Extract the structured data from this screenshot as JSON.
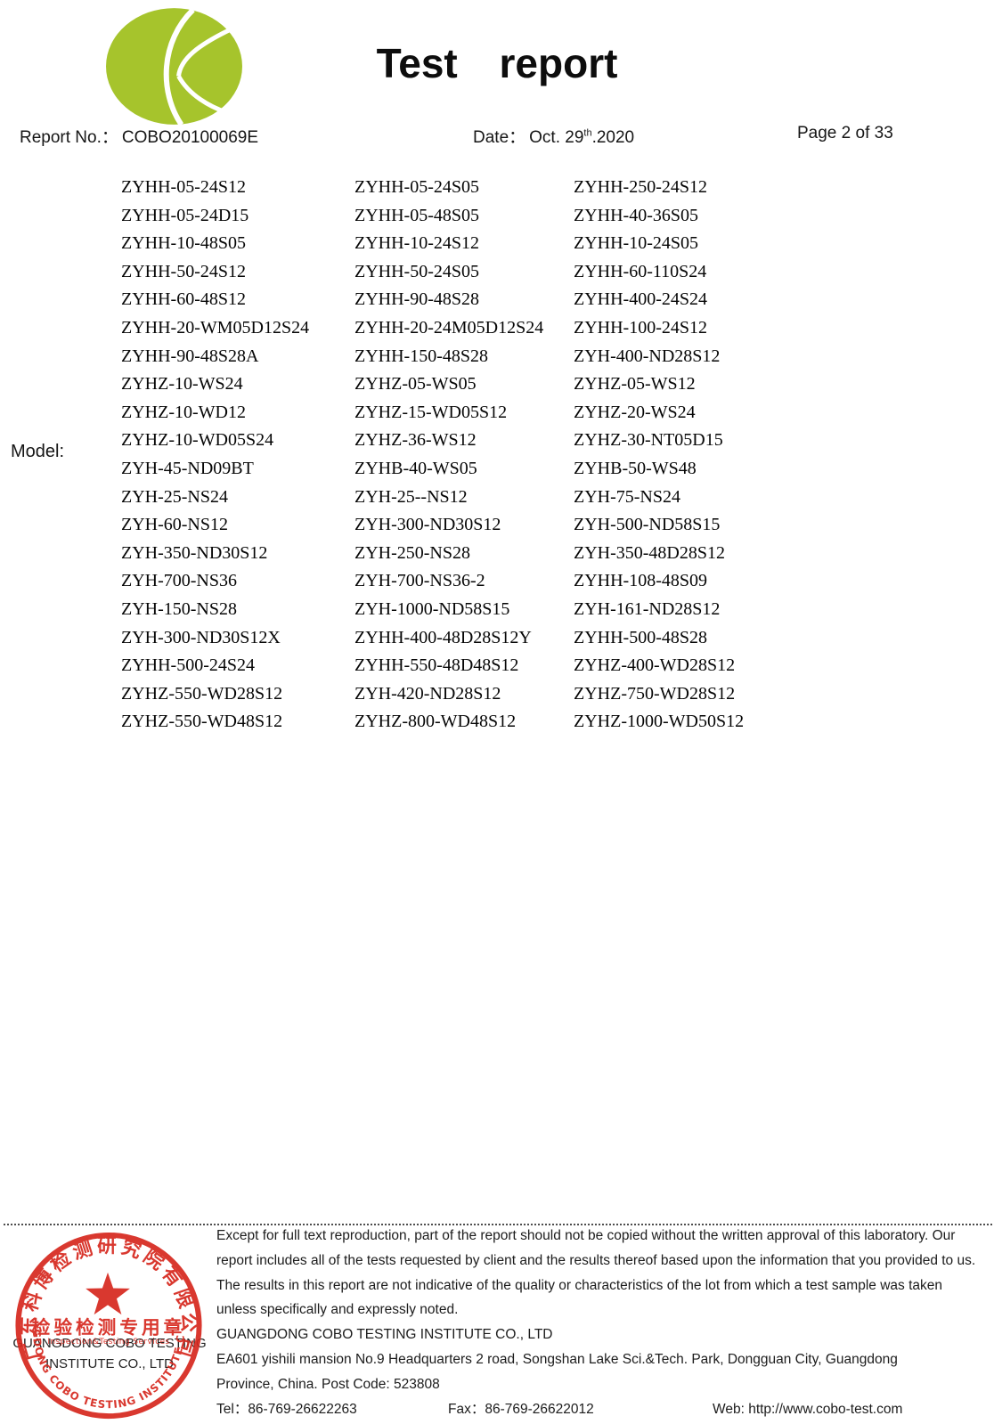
{
  "header": {
    "title": "Test report",
    "report_no_label": "Report No.：",
    "report_no_value": "COBO20100069E",
    "date_label": "Date：",
    "date_day": "Oct. 29",
    "date_ordinal": "th",
    "date_year": ".2020",
    "page_label": "Page 2 of 33"
  },
  "model": {
    "label": "Model:",
    "rows": [
      [
        "ZYHH-05-24S12",
        "ZYHH-05-24S05",
        "ZYHH-250-24S12"
      ],
      [
        "ZYHH-05-24D15",
        "ZYHH-05-48S05",
        "ZYHH-40-36S05"
      ],
      [
        "ZYHH-10-48S05",
        "ZYHH-10-24S12",
        "ZYHH-10-24S05"
      ],
      [
        "ZYHH-50-24S12",
        "ZYHH-50-24S05",
        "ZYHH-60-110S24"
      ],
      [
        "ZYHH-60-48S12",
        "ZYHH-90-48S28",
        "ZYHH-400-24S24"
      ],
      [
        "ZYHH-20-WM05D12S24",
        "ZYHH-20-24M05D12S24",
        "ZYHH-100-24S12"
      ],
      [
        "ZYHH-90-48S28A",
        "ZYHH-150-48S28",
        "ZYH-400-ND28S12"
      ],
      [
        "ZYHZ-10-WS24",
        "ZYHZ-05-WS05",
        "ZYHZ-05-WS12"
      ],
      [
        "ZYHZ-10-WD12",
        "ZYHZ-15-WD05S12",
        "ZYHZ-20-WS24"
      ],
      [
        "ZYHZ-10-WD05S24",
        "ZYHZ-36-WS12",
        "ZYHZ-30-NT05D15"
      ],
      [
        "ZYH-45-ND09BT",
        "ZYHB-40-WS05",
        "ZYHB-50-WS48"
      ],
      [
        "ZYH-25-NS24",
        "ZYH-25--NS12",
        "ZYH-75-NS24"
      ],
      [
        "ZYH-60-NS12",
        "ZYH-300-ND30S12",
        "ZYH-500-ND58S15"
      ],
      [
        "ZYH-350-ND30S12",
        "ZYH-250-NS28",
        "ZYH-350-48D28S12"
      ],
      [
        "ZYH-700-NS36",
        "ZYH-700-NS36-2",
        "ZYHH-108-48S09"
      ],
      [
        "ZYH-150-NS28",
        "ZYH-1000-ND58S15",
        "ZYH-161-ND28S12"
      ],
      [
        "ZYH-300-ND30S12X",
        "ZYHH-400-48D28S12Y",
        "ZYHH-500-48S28"
      ],
      [
        "ZYHH-500-24S24",
        "ZYHH-550-48D48S12",
        "ZYHZ-400-WD28S12"
      ],
      [
        "ZYHZ-550-WD28S12",
        "ZYH-420-ND28S12",
        "ZYHZ-750-WD28S12"
      ],
      [
        "ZYHZ-550-WD48S12",
        "ZYHZ-800-WD48S12",
        "ZYHZ-1000-WD50S12"
      ]
    ]
  },
  "footer": {
    "disclaimer_lines": [
      "Except for full text reproduction, part of the report should not be copied without the written approval of this laboratory. Our",
      "report includes all of the tests requested by client and the results thereof based upon the information that you provided to us.",
      "The results in this report are not indicative of the quality or characteristics of the lot from which a test sample was taken",
      "unless specifically and expressly noted."
    ],
    "company_name": "GUANGDONG COBO TESTING INSTITUTE CO., LTD",
    "address_line1": "EA601 yishili mansion No.9 Headquarters 2 road, Songshan Lake Sci.&Tech. Park, Dongguan City, Guangdong",
    "address_line2": "Province, China. Post Code: 523808",
    "tel": "Tel：86-769-26622263",
    "fax": "Fax：86-769-26622012",
    "web": "Web: http://www.cobo-test.com"
  },
  "stamp": {
    "arc_top_text": "广东科博检测研究院有限公司",
    "center_text": "检验检测专用章",
    "center_subtext": "Inspection&Testing Services",
    "arc_bottom_text": "GUANGDONG COBO TESTING INSTITUTE CO.,LTD",
    "printed_line1": "GUANGDONG COBO TESTING",
    "printed_line2": "INSTITUTE CO., LTD"
  },
  "colors": {
    "logo_green": "#a6c42c",
    "stamp_red": "#d6281e"
  }
}
